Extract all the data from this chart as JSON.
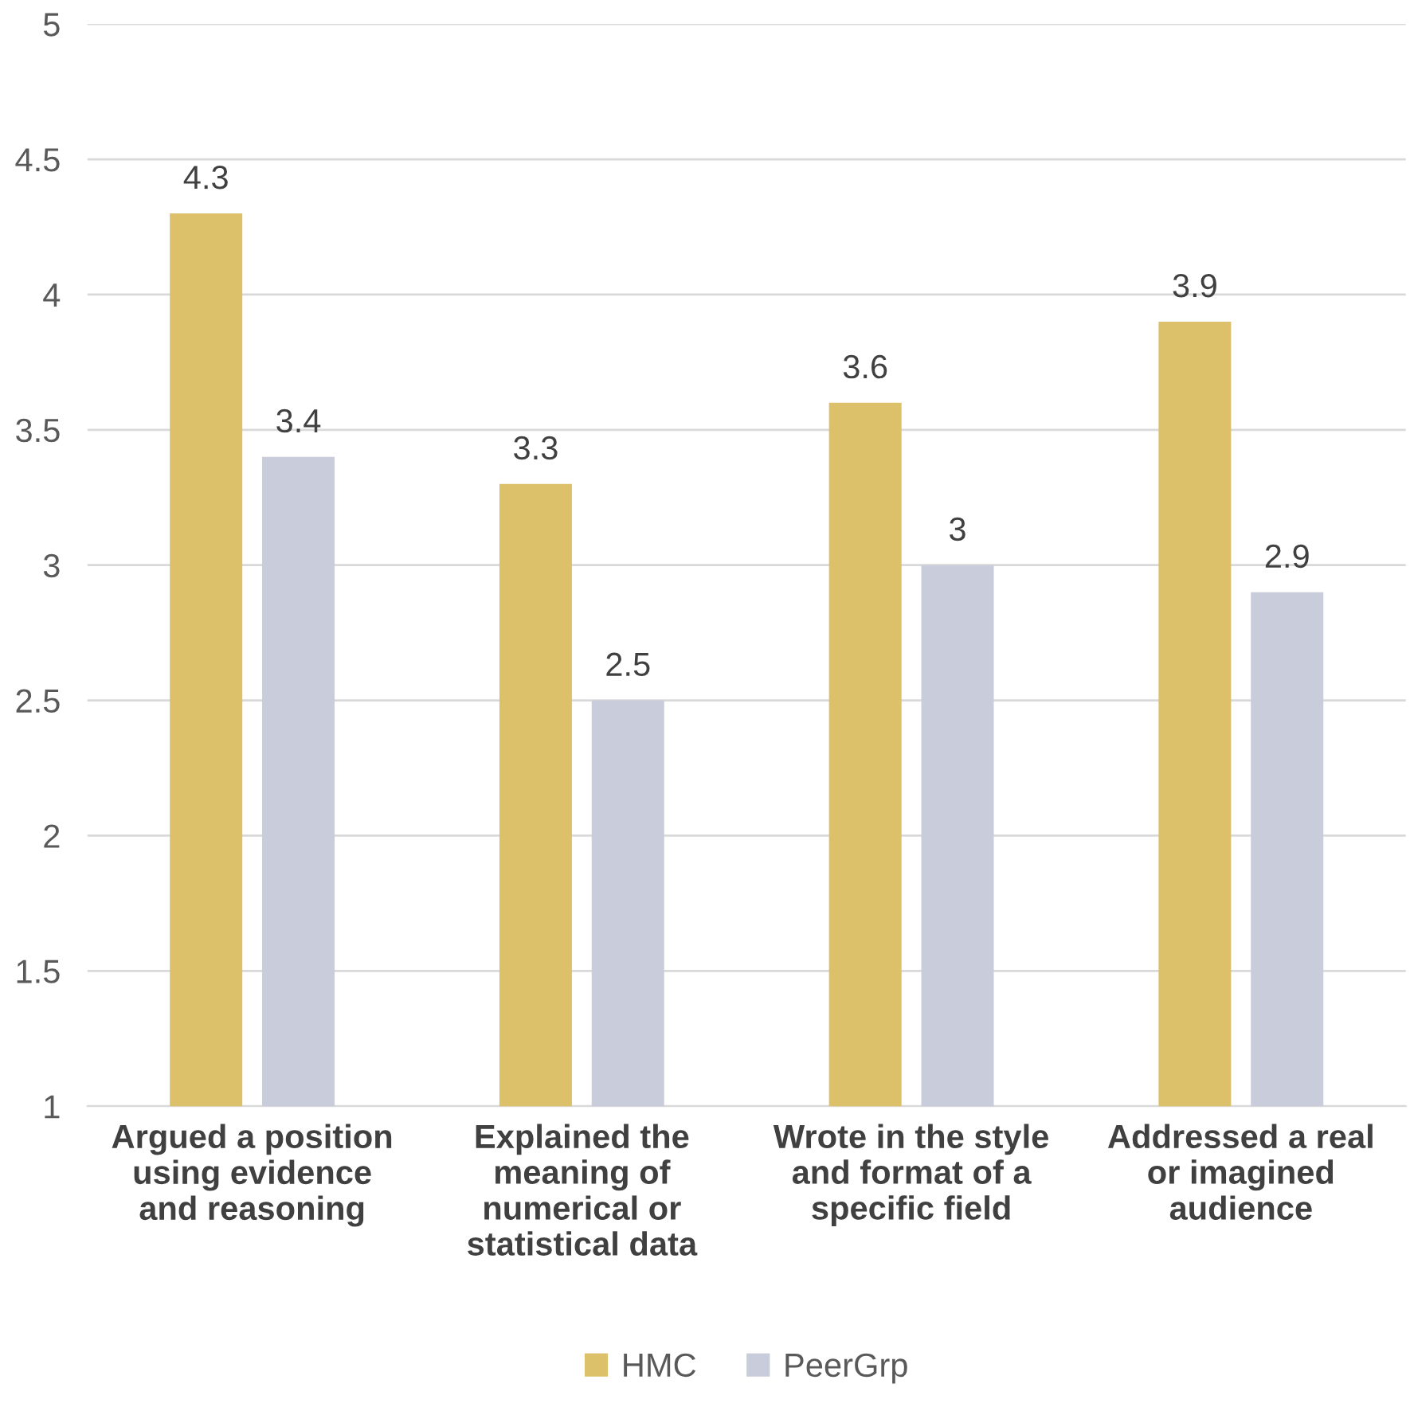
{
  "chart_data": {
    "type": "bar",
    "categories": [
      "Argued a position\nusing evidence\nand reasoning",
      "Explained the\nmeaning of\nnumerical or\nstatistical data",
      "Wrote in the style\nand format of a\nspecific field",
      "Addressed a real\nor imagined\naudience"
    ],
    "series": [
      {
        "name": "HMC",
        "color": "#dcc16a",
        "values": [
          4.3,
          3.3,
          3.6,
          3.9
        ]
      },
      {
        "name": "PeerGrp",
        "color": "#c9ccdb",
        "values": [
          3.4,
          2.5,
          3,
          2.9
        ]
      }
    ],
    "ylim": [
      1,
      5
    ],
    "yticks": [
      1,
      1.5,
      2,
      2.5,
      3,
      3.5,
      4,
      4.5,
      5
    ],
    "grid": "y",
    "legend": "bottom",
    "data_labels": true
  }
}
